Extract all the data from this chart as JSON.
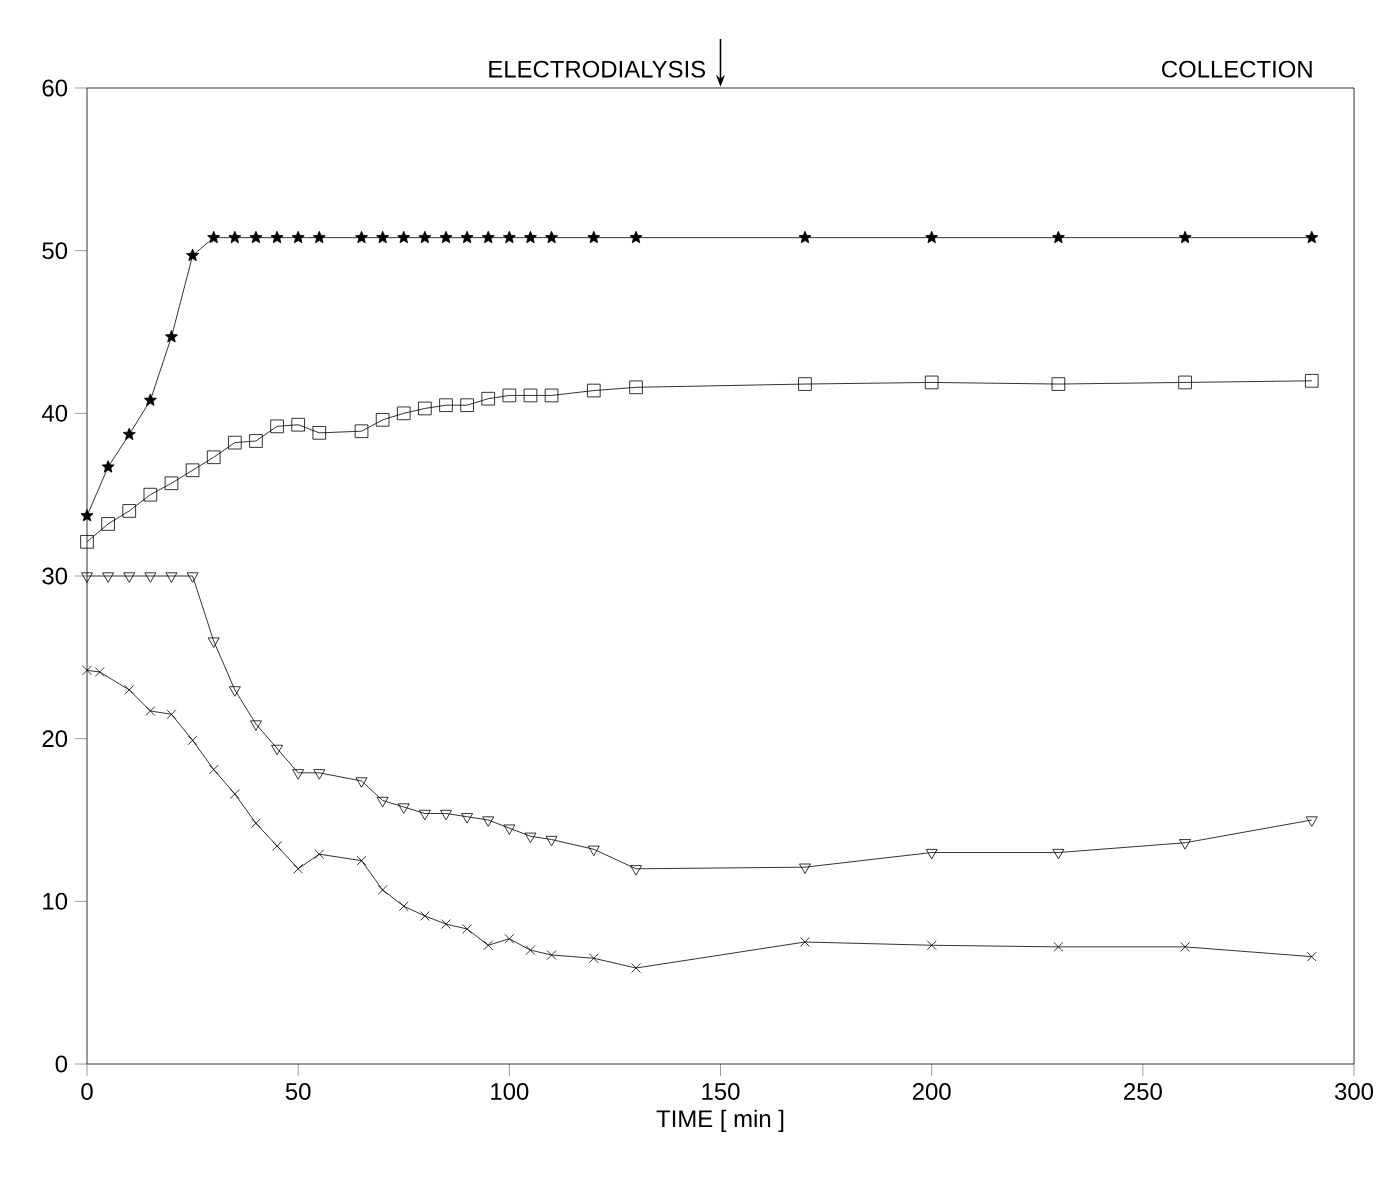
{
  "chart_data": {
    "type": "line",
    "xlabel": "TIME [ min ]",
    "xlim": [
      0,
      300
    ],
    "ylim": [
      0,
      60
    ],
    "xticks": [
      0,
      50,
      100,
      150,
      200,
      250,
      300
    ],
    "yticks": [
      0,
      10,
      20,
      30,
      40,
      50,
      60
    ],
    "grid": false,
    "line_style": "solid",
    "annotations": [
      "ELECTRODIALYSIS",
      "COLLECTION"
    ],
    "series": [
      {
        "color": "#000000",
        "marker": "star",
        "x": [
          0,
          5,
          10,
          15,
          20,
          25,
          30,
          35,
          40,
          45,
          50,
          55,
          65,
          70,
          75,
          80,
          85,
          90,
          95,
          100,
          105,
          110,
          120,
          130,
          170,
          200,
          230,
          260,
          290
        ],
        "values": [
          33.7,
          36.7,
          38.7,
          40.8,
          44.7,
          49.7,
          50.8,
          50.8,
          50.8,
          50.8,
          50.8,
          50.8,
          50.8,
          50.8,
          50.8,
          50.8,
          50.8,
          50.8,
          50.8,
          50.8,
          50.8,
          50.8,
          50.8,
          50.8,
          50.8,
          50.8,
          50.8,
          50.8,
          50.8
        ]
      },
      {
        "color": "#000000",
        "marker": "square",
        "x": [
          0,
          5,
          10,
          15,
          20,
          25,
          30,
          35,
          40,
          45,
          50,
          55,
          65,
          70,
          75,
          80,
          85,
          90,
          95,
          100,
          105,
          110,
          120,
          130,
          170,
          200,
          230,
          260,
          290
        ],
        "values": [
          32.1,
          33.2,
          34.0,
          35.0,
          35.7,
          36.5,
          37.3,
          38.2,
          38.3,
          39.2,
          39.3,
          38.8,
          38.9,
          39.6,
          40.0,
          40.3,
          40.5,
          40.5,
          40.9,
          41.1,
          41.1,
          41.1,
          41.4,
          41.6,
          41.8,
          41.9,
          41.8,
          41.9,
          42.0
        ]
      },
      {
        "color": "#000000",
        "marker": "triangle",
        "x": [
          0,
          5,
          10,
          15,
          20,
          25,
          30,
          35,
          40,
          45,
          50,
          55,
          65,
          70,
          75,
          80,
          85,
          90,
          95,
          100,
          105,
          110,
          120,
          130,
          170,
          200,
          230,
          260,
          290
        ],
        "values": [
          30,
          30,
          30,
          30,
          30,
          30,
          26.0,
          23.0,
          20.9,
          19.4,
          17.9,
          17.9,
          17.4,
          16.2,
          15.8,
          15.4,
          15.4,
          15.2,
          15.0,
          14.5,
          14.0,
          13.8,
          13.2,
          12.0,
          12.1,
          13.0,
          13.0,
          13.6,
          15.0
        ]
      },
      {
        "color": "#000000",
        "marker": "cross",
        "x": [
          0,
          3,
          10,
          15,
          20,
          25,
          30,
          35,
          40,
          45,
          50,
          55,
          65,
          70,
          75,
          80,
          85,
          90,
          95,
          100,
          105,
          110,
          120,
          130,
          170,
          200,
          230,
          260,
          290
        ],
        "values": [
          24.2,
          24.1,
          23.0,
          21.7,
          21.5,
          19.9,
          18.1,
          16.6,
          14.8,
          13.4,
          12.0,
          12.9,
          12.5,
          10.7,
          9.7,
          9.1,
          8.6,
          8.3,
          7.3,
          7.7,
          7.0,
          6.7,
          6.5,
          5.9,
          7.5,
          7.3,
          7.2,
          7.2,
          6.6
        ]
      }
    ]
  }
}
